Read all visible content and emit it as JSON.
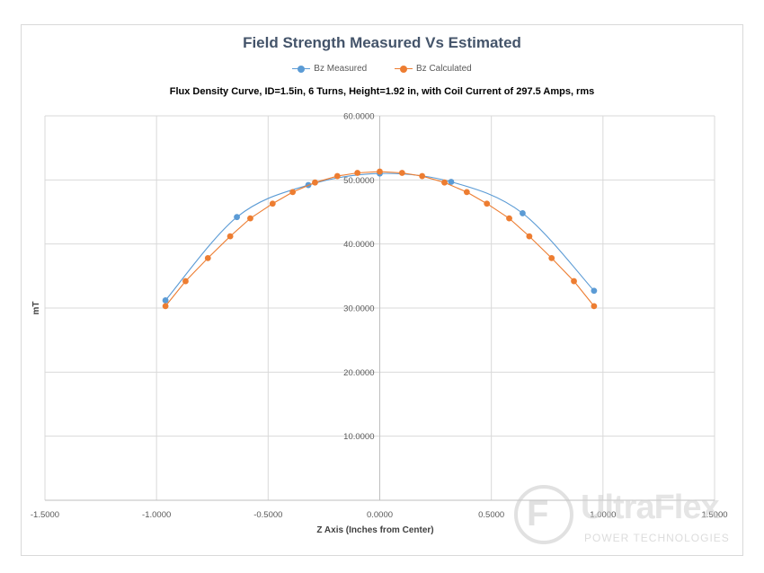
{
  "chart_data": {
    "type": "scatter",
    "title": "Field Strength Measured Vs Estimated",
    "subtitle": "Flux Density Curve, ID=1.5in,  6 Turns, Height=1.92 in, with Coil Current of 297.5 Amps, rms",
    "xlabel": "Z Axis (Inches from Center)",
    "ylabel": "mT",
    "xlim": [
      -1.5,
      1.5
    ],
    "ylim": [
      0,
      60
    ],
    "x_ticks": [
      -1.5,
      -1.0,
      -0.5,
      0.0,
      0.5,
      1.0,
      1.5
    ],
    "x_tick_labels": [
      "-1.5000",
      "-1.0000",
      "-0.5000",
      "0.0000",
      "0.5000",
      "1.0000",
      "1.5000"
    ],
    "y_ticks": [
      10,
      20,
      30,
      40,
      50,
      60
    ],
    "y_tick_labels": [
      "10.0000",
      "20.0000",
      "30.0000",
      "40.0000",
      "50.0000",
      "60.0000"
    ],
    "grid": true,
    "legend_position": "top",
    "series": [
      {
        "name": "Bz Measured",
        "color": "#5b9bd5",
        "smooth": true,
        "points": [
          [
            -0.96,
            31.2
          ],
          [
            -0.64,
            44.2
          ],
          [
            -0.32,
            49.2
          ],
          [
            0.0,
            51.0
          ],
          [
            0.32,
            49.7
          ],
          [
            0.64,
            44.8
          ],
          [
            0.96,
            32.7
          ]
        ]
      },
      {
        "name": "Bz Calculated",
        "color": "#ed7d31",
        "smooth": false,
        "points": [
          [
            -0.96,
            30.3
          ],
          [
            -0.87,
            34.2
          ],
          [
            -0.77,
            37.8
          ],
          [
            -0.67,
            41.2
          ],
          [
            -0.58,
            44.0
          ],
          [
            -0.48,
            46.3
          ],
          [
            -0.39,
            48.1
          ],
          [
            -0.29,
            49.6
          ],
          [
            -0.19,
            50.6
          ],
          [
            -0.1,
            51.1
          ],
          [
            0.0,
            51.3
          ],
          [
            0.1,
            51.1
          ],
          [
            0.19,
            50.6
          ],
          [
            0.29,
            49.6
          ],
          [
            0.39,
            48.1
          ],
          [
            0.48,
            46.3
          ],
          [
            0.58,
            44.0
          ],
          [
            0.67,
            41.2
          ],
          [
            0.77,
            37.8
          ],
          [
            0.87,
            34.2
          ],
          [
            0.96,
            30.3
          ]
        ]
      }
    ]
  },
  "watermark": {
    "logo_letter": "F",
    "name": "UltraFlex",
    "tagline": "POWER TECHNOLOGIES"
  }
}
